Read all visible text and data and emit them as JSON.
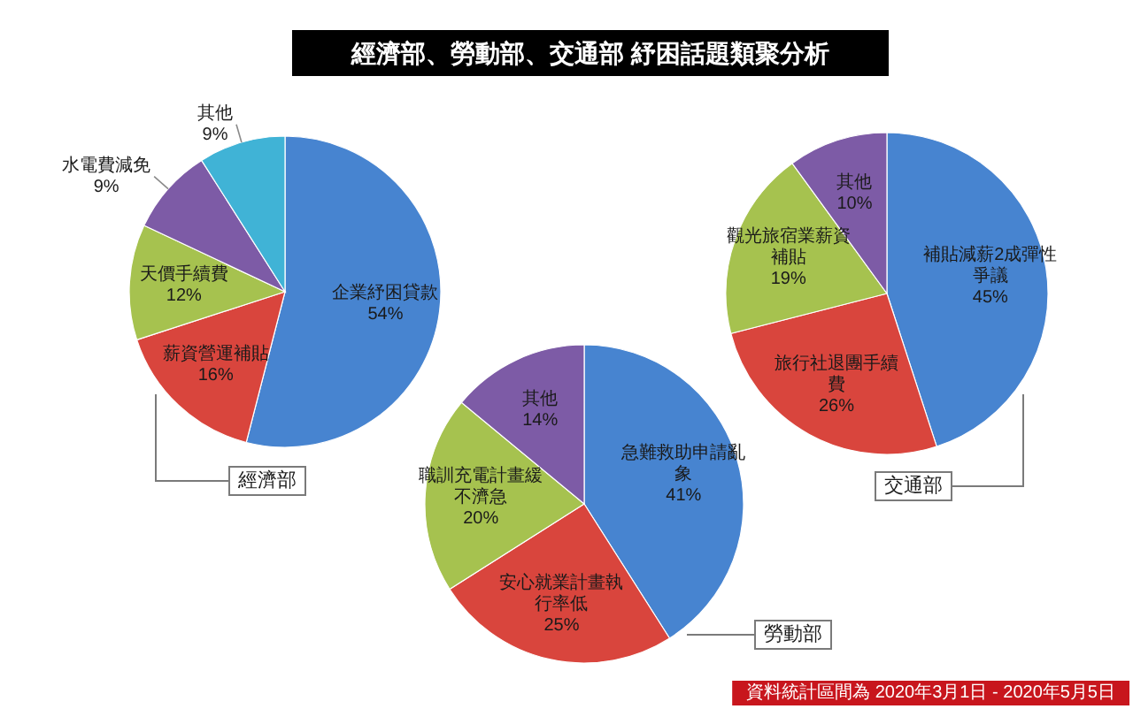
{
  "chart_data": [
    {
      "type": "pie",
      "title": "經濟部",
      "categories": [
        "企業紓困貸款",
        "薪資營運補貼",
        "天價手續費",
        "水電費減免",
        "其他"
      ],
      "values": [
        54,
        16,
        12,
        9,
        9
      ],
      "value_labels": [
        "54%",
        "16%",
        "12%",
        "9%",
        "9%"
      ],
      "colors": [
        "#4784d0",
        "#d9453d",
        "#a6c24f",
        "#7d5ba6",
        "#40b3d6"
      ],
      "annotations": [
        "經濟部、勞動部、交通部 紓困話題類聚分析"
      ]
    },
    {
      "type": "pie",
      "title": "交通部",
      "categories": [
        "補貼減薪2成彈性爭議",
        "旅行社退團手續費",
        "觀光旅宿業薪資補貼",
        "其他"
      ],
      "values": [
        45,
        26,
        19,
        10
      ],
      "value_labels": [
        "45%",
        "26%",
        "19%",
        "10%"
      ],
      "colors": [
        "#4784d0",
        "#d9453d",
        "#a6c24f",
        "#7d5ba6"
      ]
    },
    {
      "type": "pie",
      "title": "勞動部",
      "categories": [
        "急難救助申請亂象",
        "安心就業計畫執行率低",
        "職訓充電計畫緩不濟急",
        "其他"
      ],
      "values": [
        41,
        25,
        20,
        14
      ],
      "value_labels": [
        "41%",
        "25%",
        "20%",
        "14%"
      ],
      "colors": [
        "#4784d0",
        "#d9453d",
        "#a6c24f",
        "#7d5ba6"
      ],
      "annotations": [
        "資料統計區間為 2020年3月1日 - 2020年5月5日"
      ]
    }
  ]
}
